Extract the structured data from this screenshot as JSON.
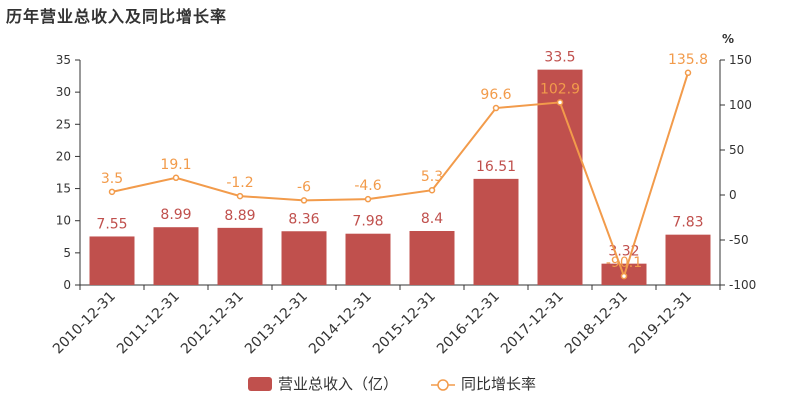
{
  "title": "历年营业总收入及同比增长率",
  "chart_data": {
    "type": "bar",
    "categories": [
      "2010-12-31",
      "2011-12-31",
      "2012-12-31",
      "2013-12-31",
      "2014-12-31",
      "2015-12-31",
      "2016-12-31",
      "2017-12-31",
      "2018-12-31",
      "2019-12-31"
    ],
    "series": [
      {
        "name": "营业总收入（亿）",
        "type": "bar",
        "axis": "left",
        "color": "#c0504d",
        "values": [
          7.55,
          8.99,
          8.89,
          8.36,
          7.98,
          8.4,
          16.51,
          33.5,
          3.32,
          7.83
        ],
        "labels": [
          "7.55",
          "8.99",
          "8.89",
          "8.36",
          "7.98",
          "8.4",
          "16.51",
          "33.5",
          "3.32",
          "7.83"
        ]
      },
      {
        "name": "同比增长率",
        "type": "line",
        "axis": "right",
        "color": "#f29b4b",
        "values": [
          3.5,
          19.1,
          -1.2,
          -6,
          -4.6,
          5.3,
          96.6,
          102.9,
          -90.1,
          135.8
        ],
        "labels": [
          "3.5",
          "19.1",
          "-1.2",
          "-6",
          "-4.6",
          "5.3",
          "96.6",
          "102.9",
          "-90.1",
          "135.8"
        ]
      }
    ],
    "y_left": {
      "min": 0,
      "max": 35,
      "ticks": [
        0,
        5,
        10,
        15,
        20,
        25,
        30,
        35
      ],
      "tick_labels": [
        "0",
        "5",
        "10",
        "15",
        "20",
        "25",
        "30",
        "35"
      ]
    },
    "y_right": {
      "min": -100,
      "max": 150,
      "ticks": [
        -100,
        -50,
        0,
        50,
        100,
        150
      ],
      "tick_labels": [
        "-100",
        "-50",
        "0",
        "50",
        "100",
        "150"
      ],
      "unit": "%"
    },
    "grid": false,
    "legend_position": "bottom-center"
  }
}
